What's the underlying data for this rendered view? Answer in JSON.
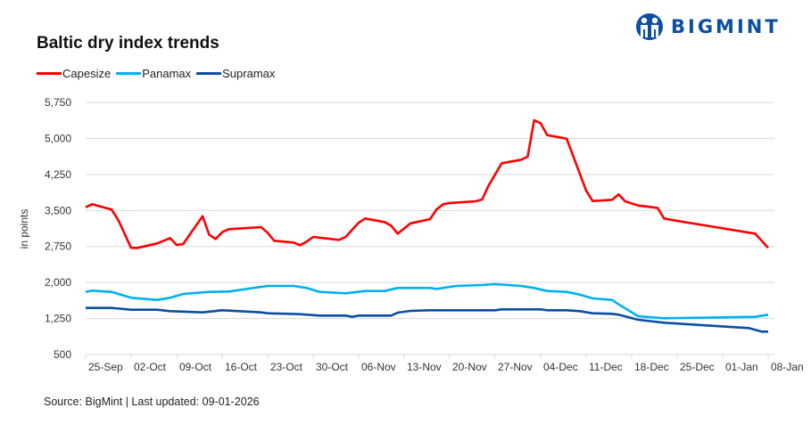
{
  "logo": {
    "text": "BIGMINT",
    "color": "#0b4ea2"
  },
  "footer": {
    "source": "Source: BigMint | Last updated: 09-01-2026"
  },
  "chart_data": {
    "type": "line",
    "title": "Baltic dry index trends",
    "xlabel": "",
    "ylabel": "in points",
    "ylim": [
      500,
      5750
    ],
    "yticks": [
      "5,750",
      "5,000",
      "4,250",
      "3,500",
      "2,750",
      "2,000",
      "1,250",
      "500"
    ],
    "ytick_values": [
      5750,
      5000,
      4250,
      3500,
      2750,
      2000,
      1250,
      500
    ],
    "xlim": [
      "2025-09-25",
      "2026-01-08"
    ],
    "xticks": [
      "25-Sep",
      "02-Oct",
      "09-Oct",
      "16-Oct",
      "23-Oct",
      "30-Oct",
      "06-Nov",
      "13-Nov",
      "20-Nov",
      "27-Nov",
      "04-Dec",
      "11-Dec",
      "18-Dec",
      "25-Dec",
      "01-Jan",
      "08-Jan"
    ],
    "grid": "horizontal",
    "legend": "top-left",
    "series": [
      {
        "name": "Capesize",
        "color": "#ff0000",
        "x": [
          "2025-09-25",
          "2025-09-26",
          "2025-09-29",
          "2025-09-30",
          "2025-10-02",
          "2025-10-03",
          "2025-10-06",
          "2025-10-08",
          "2025-10-09",
          "2025-10-10",
          "2025-10-13",
          "2025-10-14",
          "2025-10-15",
          "2025-10-16",
          "2025-10-17",
          "2025-10-22",
          "2025-10-23",
          "2025-10-24",
          "2025-10-27",
          "2025-10-28",
          "2025-10-29",
          "2025-10-30",
          "2025-11-03",
          "2025-11-04",
          "2025-11-06",
          "2025-11-07",
          "2025-11-10",
          "2025-11-11",
          "2025-11-12",
          "2025-11-14",
          "2025-11-17",
          "2025-11-18",
          "2025-11-19",
          "2025-11-20",
          "2025-11-24",
          "2025-11-25",
          "2025-11-26",
          "2025-11-28",
          "2025-12-01",
          "2025-12-02",
          "2025-12-03",
          "2025-12-04",
          "2025-12-05",
          "2025-12-08",
          "2025-12-11",
          "2025-12-12",
          "2025-12-15",
          "2025-12-16",
          "2025-12-17",
          "2025-12-19",
          "2025-12-22",
          "2025-12-23",
          "2025-12-24",
          "2026-01-06",
          "2026-01-08"
        ],
        "values": [
          3566,
          3630,
          3518,
          3307,
          2720,
          2720,
          2814,
          2924,
          2782,
          2800,
          3381,
          2998,
          2905,
          3047,
          3110,
          3153,
          3036,
          2869,
          2832,
          2776,
          2850,
          2949,
          2888,
          2949,
          3246,
          3333,
          3259,
          3185,
          3018,
          3233,
          3320,
          3524,
          3630,
          3655,
          3690,
          3728,
          4019,
          4483,
          4557,
          4618,
          5379,
          5317,
          5070,
          4996,
          3914,
          3697,
          3722,
          3833,
          3690,
          3603,
          3554,
          3333,
          3307,
          3018,
          2720
        ]
      },
      {
        "name": "Panamax",
        "color": "#00b0f0",
        "x": [
          "2025-09-25",
          "2025-09-26",
          "2025-09-29",
          "2025-10-02",
          "2025-10-06",
          "2025-10-08",
          "2025-10-10",
          "2025-10-14",
          "2025-10-17",
          "2025-10-23",
          "2025-10-27",
          "2025-10-29",
          "2025-10-31",
          "2025-11-04",
          "2025-11-07",
          "2025-11-10",
          "2025-11-12",
          "2025-11-17",
          "2025-11-18",
          "2025-11-21",
          "2025-11-25",
          "2025-11-27",
          "2025-12-01",
          "2025-12-03",
          "2025-12-05",
          "2025-12-08",
          "2025-12-10",
          "2025-12-12",
          "2025-12-15",
          "2025-12-16",
          "2025-12-19",
          "2025-12-23",
          "2026-01-06",
          "2026-01-08"
        ],
        "values": [
          1804,
          1830,
          1804,
          1681,
          1638,
          1681,
          1761,
          1804,
          1811,
          1928,
          1928,
          1885,
          1804,
          1774,
          1823,
          1823,
          1885,
          1885,
          1866,
          1928,
          1947,
          1965,
          1928,
          1885,
          1823,
          1804,
          1748,
          1669,
          1638,
          1545,
          1298,
          1255,
          1285,
          1329
        ]
      },
      {
        "name": "Supramax",
        "color": "#0b4ea2",
        "x": [
          "2025-09-25",
          "2025-09-29",
          "2025-10-02",
          "2025-10-06",
          "2025-10-08",
          "2025-10-13",
          "2025-10-16",
          "2025-10-22",
          "2025-10-23",
          "2025-10-28",
          "2025-10-31",
          "2025-11-04",
          "2025-11-05",
          "2025-11-06",
          "2025-11-11",
          "2025-11-12",
          "2025-11-14",
          "2025-11-17",
          "2025-11-27",
          "2025-11-28",
          "2025-12-04",
          "2025-12-05",
          "2025-12-08",
          "2025-12-10",
          "2025-12-12",
          "2025-12-15",
          "2025-12-16",
          "2025-12-19",
          "2025-12-23",
          "2026-01-05",
          "2026-01-07",
          "2026-01-08"
        ],
        "values": [
          1470,
          1470,
          1433,
          1433,
          1403,
          1377,
          1422,
          1377,
          1359,
          1340,
          1310,
          1310,
          1285,
          1310,
          1310,
          1372,
          1409,
          1422,
          1422,
          1440,
          1440,
          1422,
          1422,
          1403,
          1359,
          1347,
          1329,
          1224,
          1162,
          1051,
          977,
          977
        ]
      }
    ]
  }
}
